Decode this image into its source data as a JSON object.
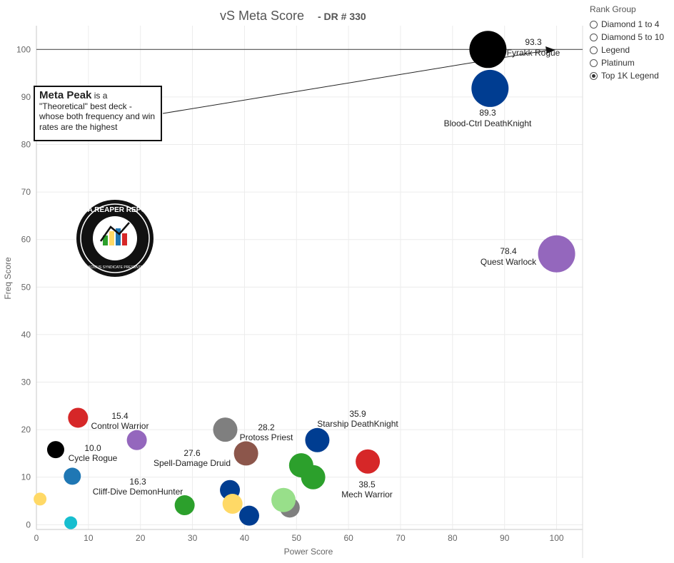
{
  "title": "vS Meta Score",
  "subtitle": "- DR # 330",
  "legend": {
    "title": "Rank Group",
    "items": [
      {
        "label": "Diamond 1 to 4",
        "checked": false
      },
      {
        "label": "Diamond 5 to 10",
        "checked": false
      },
      {
        "label": "Legend",
        "checked": false
      },
      {
        "label": "Platinum",
        "checked": false
      },
      {
        "label": "Top 1K Legend",
        "checked": true
      }
    ]
  },
  "annotation": {
    "bold": "Meta Peak",
    "text": " is a \"Theoretical\" best deck - whose both frequency and win rates are the highest"
  },
  "logo": {
    "text": "DATA REAPER REPORT",
    "subtext": "VICIOUS SYNDICATE PRESENTS"
  },
  "chart_data": {
    "type": "scatter",
    "title": "vS Meta Score - DR # 330",
    "xlabel": "Power Score",
    "ylabel": "Freq Score",
    "xlim": [
      0,
      105
    ],
    "ylim": [
      -1,
      105
    ],
    "xticks": [
      0,
      10,
      20,
      30,
      40,
      50,
      60,
      70,
      80,
      90,
      100
    ],
    "yticks": [
      0,
      10,
      20,
      30,
      40,
      50,
      60,
      70,
      80,
      90,
      100
    ],
    "grid": true,
    "reference_line": {
      "y": 100
    },
    "points": [
      {
        "x": 86.8,
        "y": 100.0,
        "color": "#000000",
        "size": "xl",
        "name": "Fyrakk Rogue",
        "score": "93.3"
      },
      {
        "x": 87.2,
        "y": 91.8,
        "color": "#003d91",
        "size": "xl",
        "name": "Blood-Ctrl DeathKnight",
        "score": "89.3"
      },
      {
        "x": 100.0,
        "y": 57.0,
        "color": "#9467bd",
        "size": "xl",
        "name": "Quest Warlock",
        "score": "78.4"
      },
      {
        "x": 8.0,
        "y": 22.5,
        "color": "#d62728",
        "size": "m",
        "name": "Control Warrior",
        "score": "15.4"
      },
      {
        "x": 3.7,
        "y": 15.8,
        "color": "#000000",
        "size": "s",
        "name": "Cycle Rogue",
        "score": "10.0"
      },
      {
        "x": 19.3,
        "y": 17.8,
        "color": "#9467bd",
        "size": "m",
        "name": "",
        "score": ""
      },
      {
        "x": 6.9,
        "y": 10.2,
        "color": "#1f77b4",
        "size": "s",
        "name": "",
        "score": ""
      },
      {
        "x": 0.7,
        "y": 5.4,
        "color": "#ffd966",
        "size": "xs",
        "name": "",
        "score": ""
      },
      {
        "x": 6.6,
        "y": 0.4,
        "color": "#17becf",
        "size": "xs",
        "name": "",
        "score": ""
      },
      {
        "x": 28.5,
        "y": 4.1,
        "color": "#2ca02c",
        "size": "m",
        "name": "Cliff-Dive DemonHunter",
        "score": "16.3"
      },
      {
        "x": 36.3,
        "y": 20.0,
        "color": "#7f7f7f",
        "size": "l",
        "name": "",
        "score": ""
      },
      {
        "x": 40.3,
        "y": 15.0,
        "color": "#8c564b",
        "size": "l",
        "name": "Spell-Damage Druid",
        "score": "27.6"
      },
      {
        "x": 37.2,
        "y": 7.3,
        "color": "#003d91",
        "size": "m",
        "name": "",
        "score": ""
      },
      {
        "x": 37.7,
        "y": 4.4,
        "color": "#ffd966",
        "size": "m",
        "name": "",
        "score": ""
      },
      {
        "x": 40.9,
        "y": 1.9,
        "color": "#003d91",
        "size": "m",
        "name": "",
        "score": ""
      },
      {
        "x": 54.0,
        "y": 17.8,
        "color": "#003d91",
        "size": "l",
        "name": "Protoss Priest",
        "score": "28.2"
      },
      {
        "x": 50.9,
        "y": 12.5,
        "color": "#2ca02c",
        "size": "l",
        "name": "",
        "score": ""
      },
      {
        "x": 53.2,
        "y": 10.0,
        "color": "#2ca02c",
        "size": "l",
        "name": "",
        "score": ""
      },
      {
        "x": 48.7,
        "y": 3.6,
        "color": "#7f7f7f",
        "size": "m",
        "name": "",
        "score": ""
      },
      {
        "x": 47.5,
        "y": 5.2,
        "color": "#98df8a",
        "size": "l",
        "name": "",
        "score": ""
      },
      {
        "x": 63.7,
        "y": 13.3,
        "color": "#d62728",
        "size": "l",
        "name": "Starship DeathKnight",
        "score": "35.9"
      },
      {
        "x": 63.7,
        "y": 13.3,
        "color": "none",
        "size": "none",
        "name": "Mech Warrior",
        "score": "38.5"
      }
    ]
  }
}
